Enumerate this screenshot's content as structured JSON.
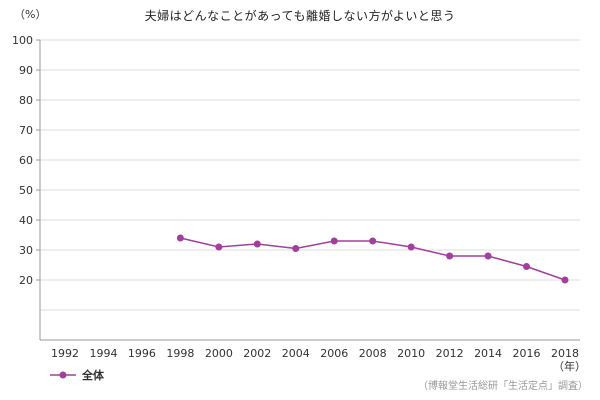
{
  "title": "夫婦はどんなことがあっても離婚しない方がよいと思う",
  "y_unit_label": "（%）",
  "x_unit_label": "（年）",
  "source_caption": "（博報堂生活総研「生活定点」調査）",
  "legend": {
    "series_label": "全体"
  },
  "colors": {
    "series": "#a0409c",
    "grid": "#dddddd",
    "axis": "#999999",
    "text": "#333333",
    "caption": "#999999"
  },
  "chart_data": {
    "type": "line",
    "title": "夫婦はどんなことがあっても離婚しない方がよいと思う",
    "xlabel": "年",
    "ylabel": "%",
    "ylim": [
      0,
      100
    ],
    "y_tick_step": 10,
    "y_tick_labels": [
      100,
      90,
      80,
      70,
      60,
      50,
      40,
      30,
      20
    ],
    "x_axis_ticks": [
      1992,
      1994,
      1996,
      1998,
      2000,
      2002,
      2004,
      2006,
      2008,
      2010,
      2012,
      2014,
      2016,
      2018
    ],
    "grid": true,
    "legend_position": "bottom-left",
    "x": [
      1998,
      2000,
      2002,
      2004,
      2006,
      2008,
      2010,
      2012,
      2014,
      2016,
      2018
    ],
    "series": [
      {
        "name": "全体",
        "values": [
          34,
          31,
          32,
          30.5,
          33,
          33,
          31,
          28,
          28,
          24.5,
          20
        ]
      }
    ]
  }
}
